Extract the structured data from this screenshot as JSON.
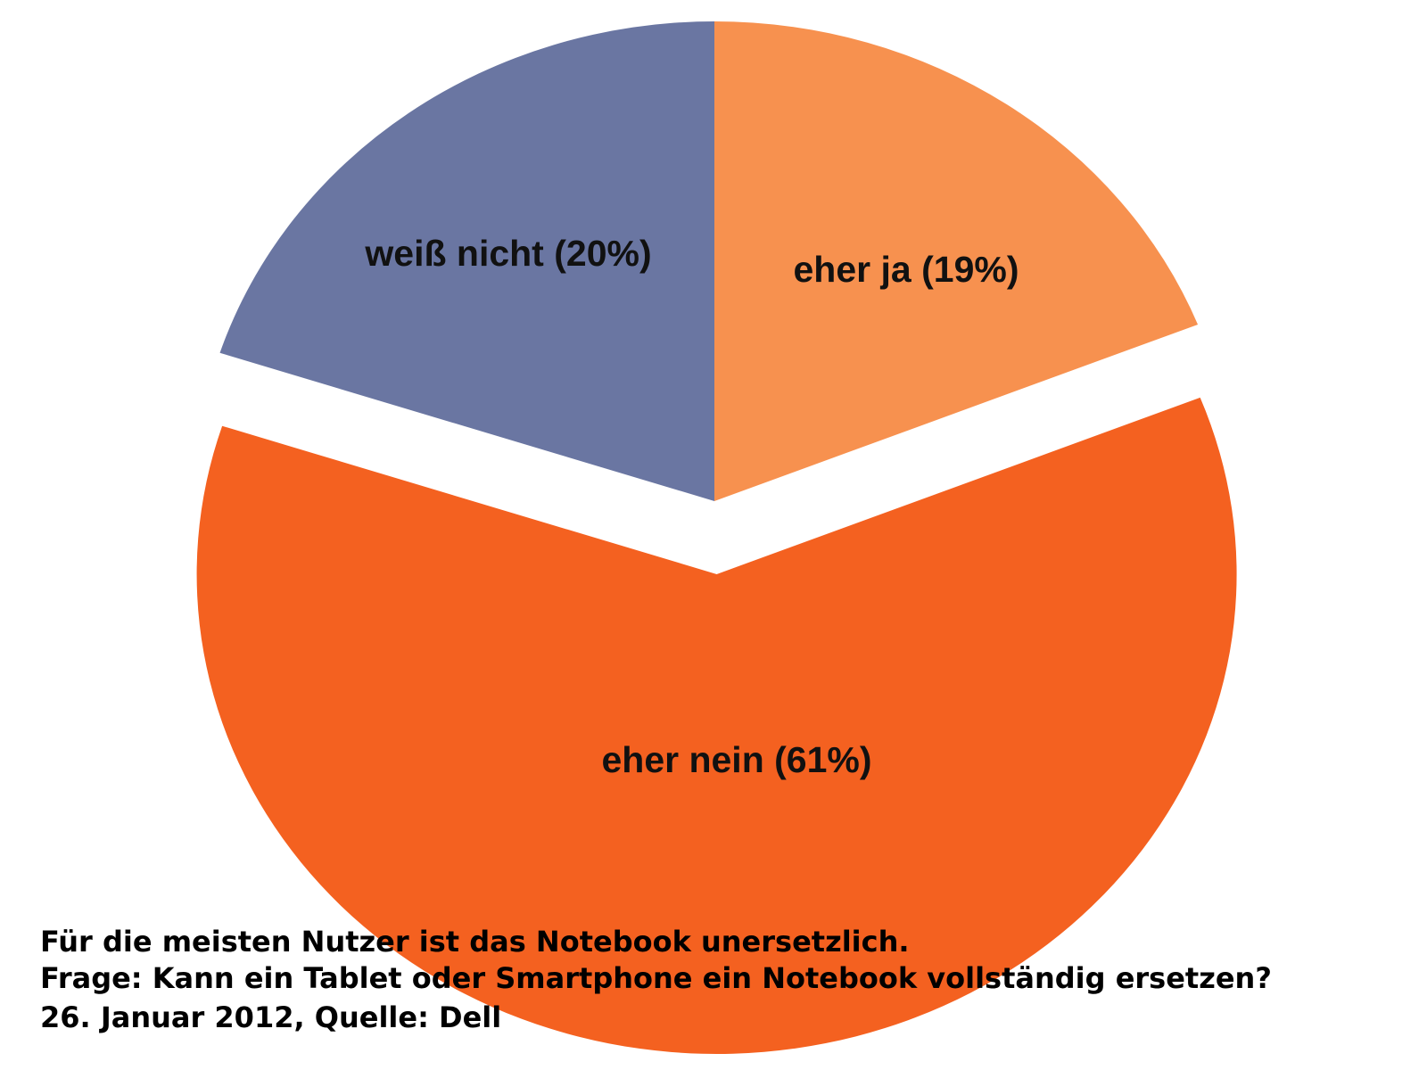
{
  "chart_data": {
    "type": "pie",
    "categories": [
      "eher ja",
      "eher nein",
      "weiß nicht"
    ],
    "values": [
      19,
      61,
      20
    ],
    "value_labels": [
      "(19%)",
      "(61%)",
      "(20%)"
    ],
    "colors": [
      "#f7914f",
      "#f46120",
      "#6a76a2"
    ],
    "caption": [
      "Für die meisten Nutzer ist das Notebook unersetzlich.",
      "Frage: Kann ein Tablet oder Smartphone ein Notebook vollständig ersetzen?",
      "26. Januar 2012, Quelle: Dell"
    ]
  }
}
